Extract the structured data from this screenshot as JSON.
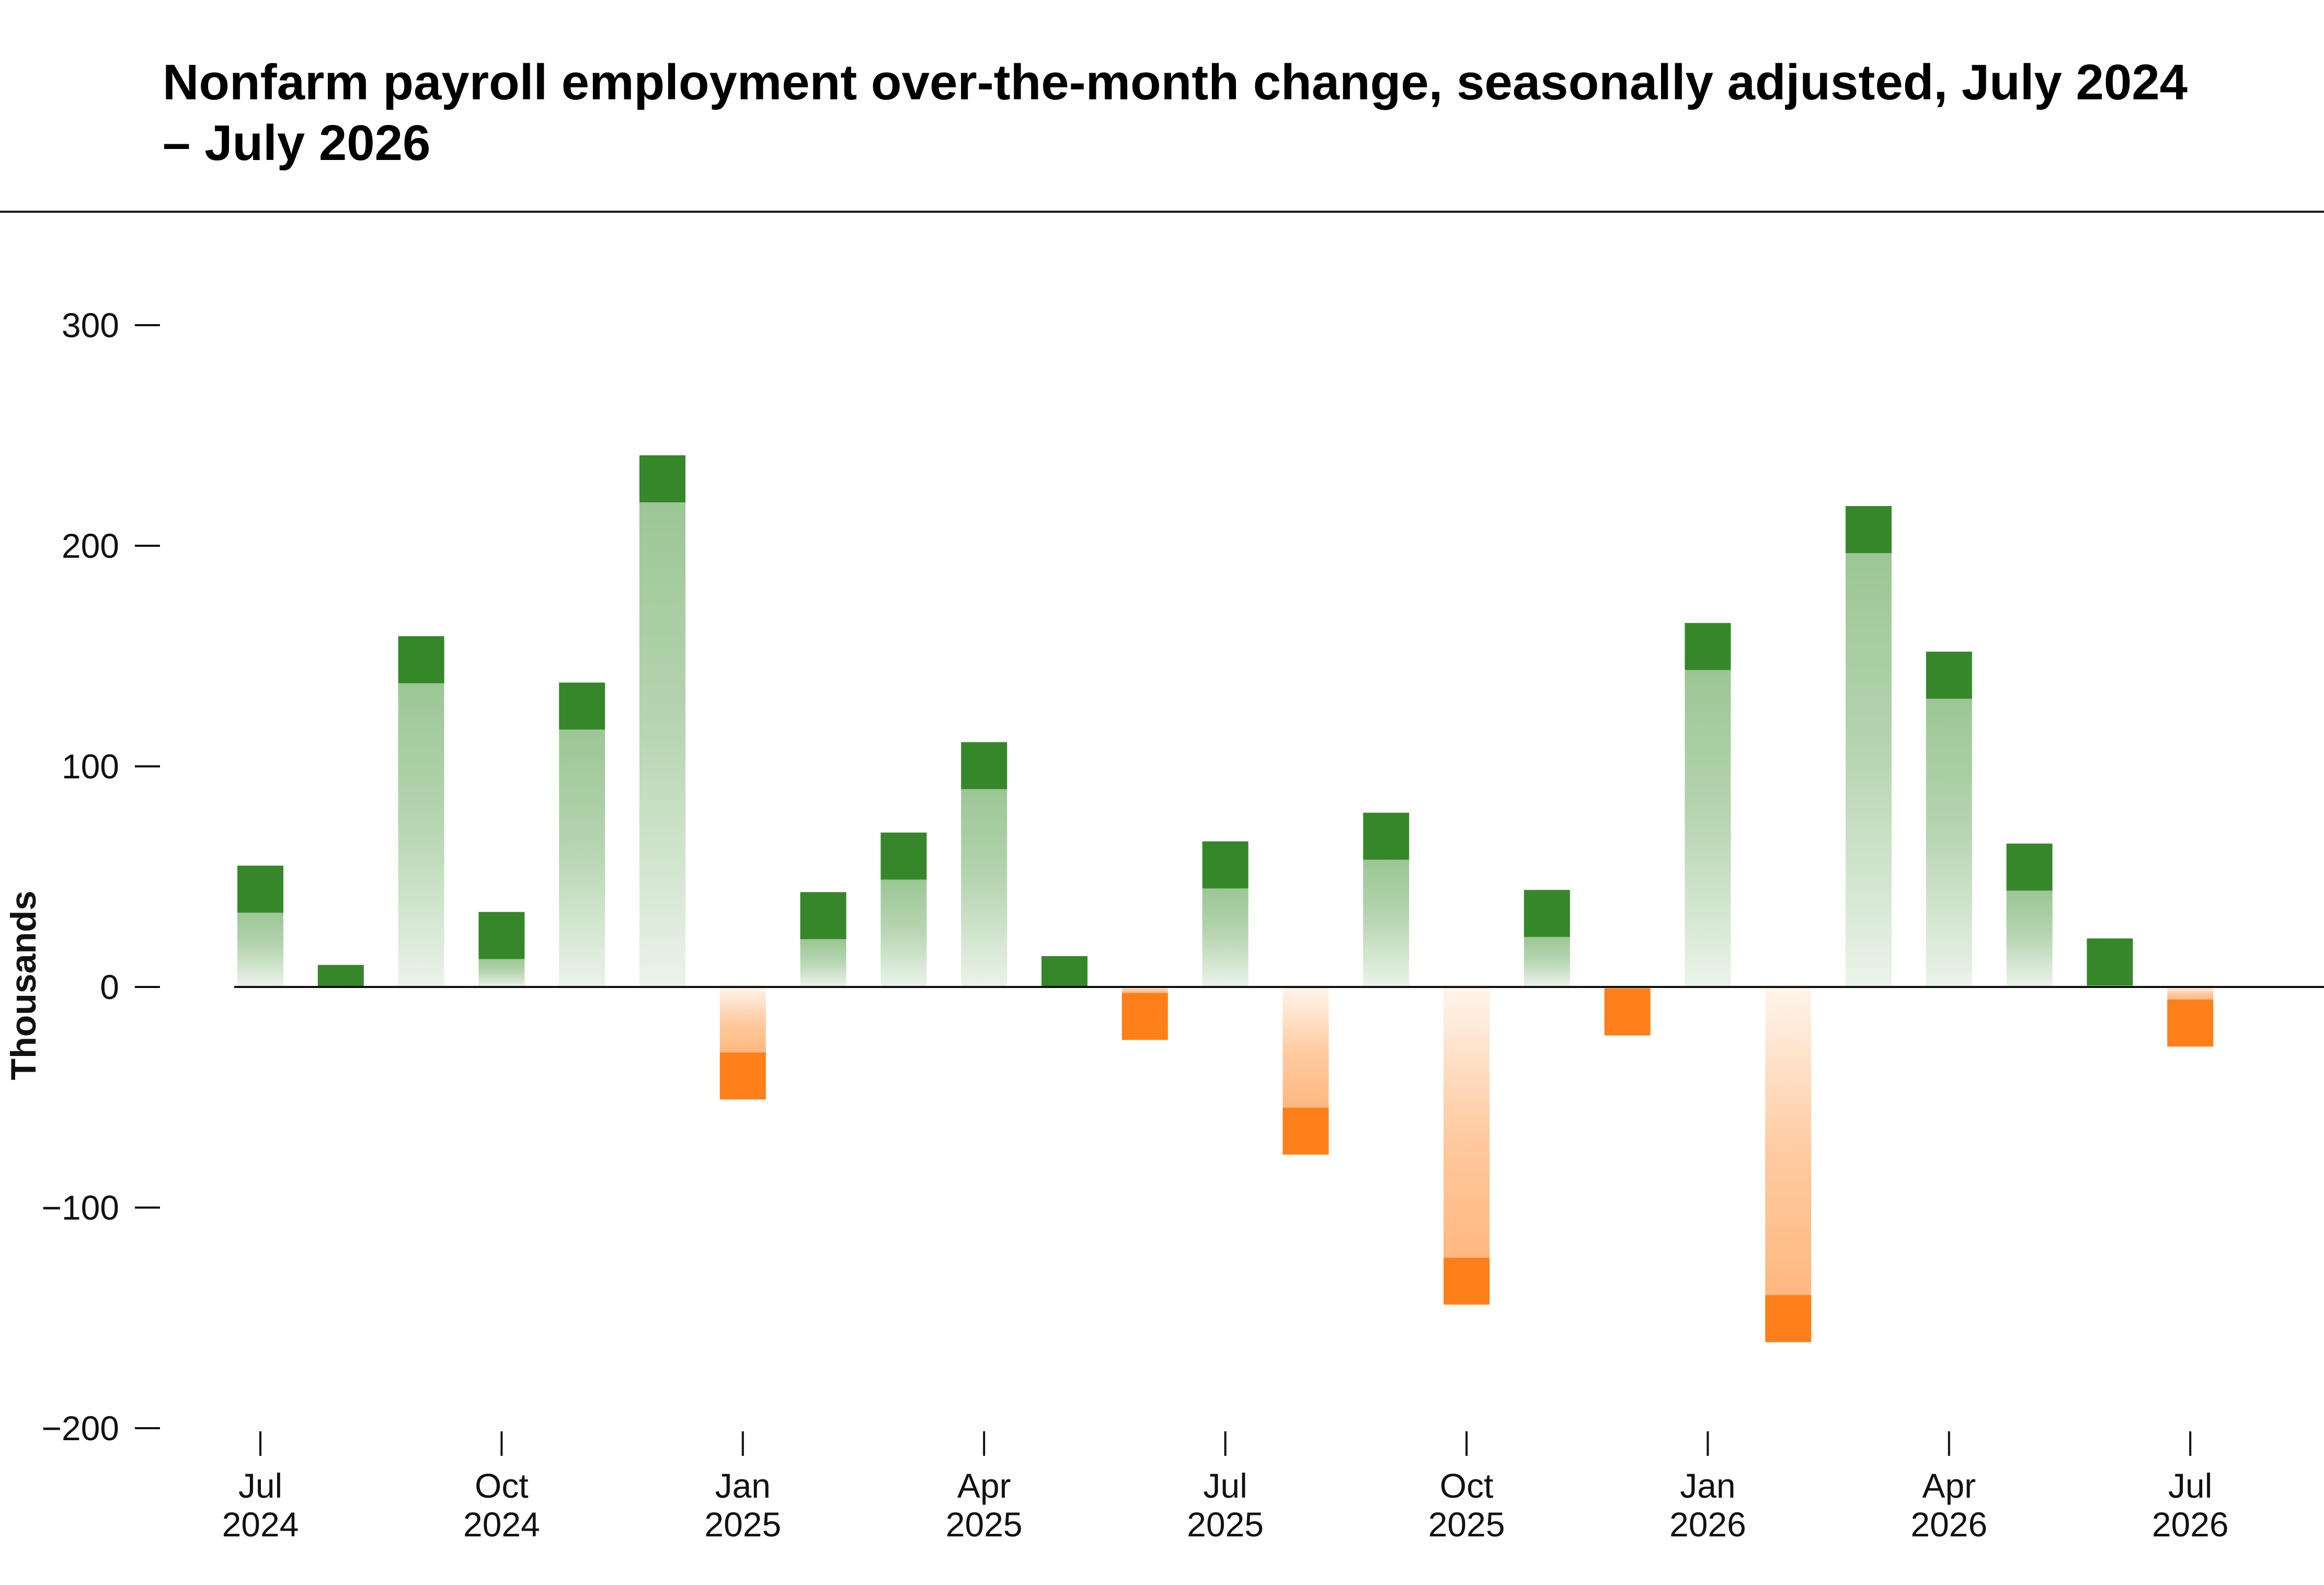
{
  "chart_data": {
    "type": "bar",
    "title": "Nonfarm payroll employment over-the-month change, seasonally adjusted, July 2024 – July 2026",
    "ylabel": "Thousands",
    "xlabel": "",
    "ylim": [
      -200,
      300
    ],
    "yticks": [
      300,
      200,
      100,
      0,
      -100,
      -200
    ],
    "ytick_labels": [
      "300",
      "200",
      "100",
      "0",
      "−100",
      "−200"
    ],
    "grid": false,
    "legend": "none",
    "categories": [
      "Jul 2024",
      "Aug 2024",
      "Sep 2024",
      "Oct 2024",
      "Nov 2024",
      "Dec 2024",
      "Jan 2025",
      "Feb 2025",
      "Mar 2025",
      "Apr 2025",
      "May 2025",
      "Jun 2025",
      "Jul 2025",
      "Aug 2025",
      "Sep 2025",
      "Oct 2025",
      "Nov 2025",
      "Dec 2025",
      "Jan 2026",
      "Feb 2026",
      "Mar 2026",
      "Apr 2026",
      "May 2026",
      "Jun 2026",
      "Jul 2026"
    ],
    "values": [
      55,
      10,
      159,
      34,
      138,
      241,
      -51,
      43,
      70,
      111,
      14,
      -24,
      66,
      -76,
      79,
      -144,
      44,
      -22,
      165,
      -161,
      218,
      152,
      65,
      22,
      -27
    ],
    "xticks": [
      {
        "month": "Jul",
        "year": "2024",
        "index": 0
      },
      {
        "month": "Oct",
        "year": "2024",
        "index": 3
      },
      {
        "month": "Jan",
        "year": "2025",
        "index": 6
      },
      {
        "month": "Apr",
        "year": "2025",
        "index": 9
      },
      {
        "month": "Jul",
        "year": "2025",
        "index": 12
      },
      {
        "month": "Oct",
        "year": "2025",
        "index": 15
      },
      {
        "month": "Jan",
        "year": "2026",
        "index": 18
      },
      {
        "month": "Apr",
        "year": "2026",
        "index": 21
      },
      {
        "month": "Jul",
        "year": "2026",
        "index": 24
      }
    ],
    "colors": {
      "positive": "#36872a",
      "positive_light": "#9cc695",
      "negative": "#ff7f1a",
      "negative_light": "#ffb880",
      "zero_line": "#111111"
    }
  }
}
